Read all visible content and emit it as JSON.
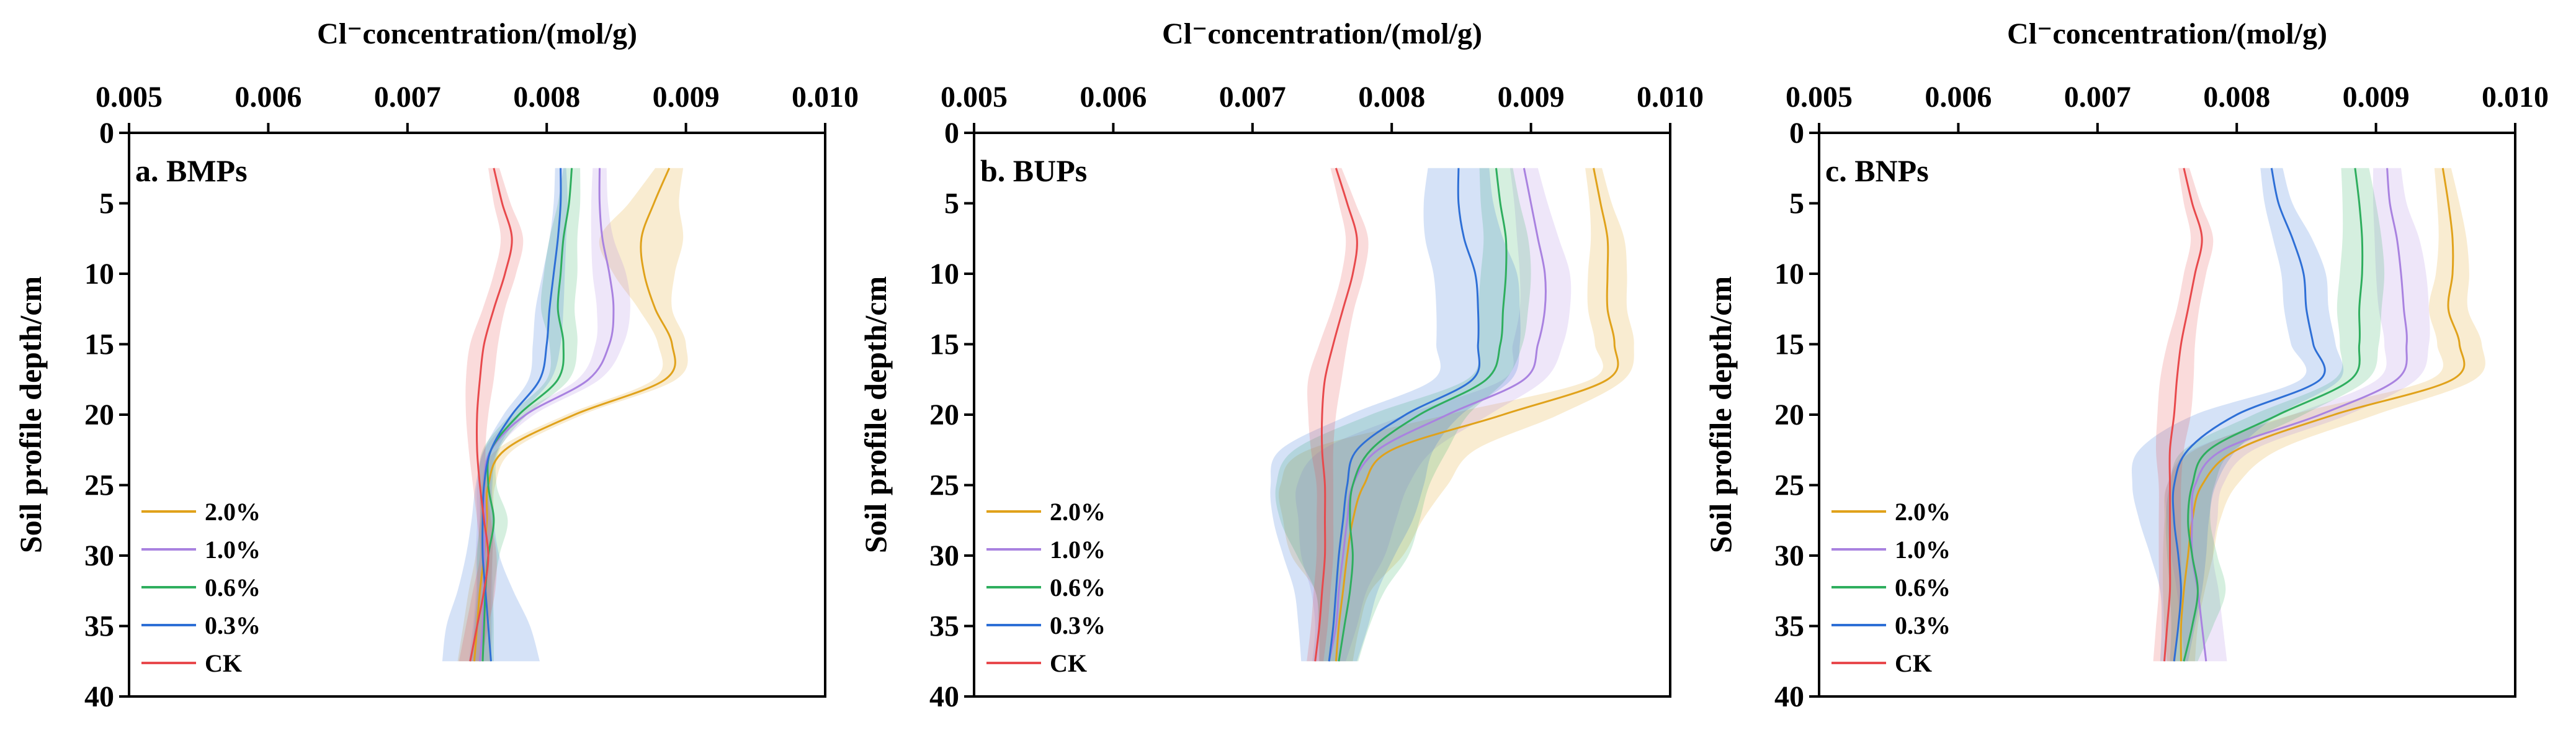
{
  "figure": {
    "panel_count": 3
  },
  "chart_data": [
    {
      "type": "line",
      "panel_label": "a. BMPs",
      "title": "Cl⁻concentration/(mol/g)",
      "xlabel": "Cl⁻concentration/(mol/g)",
      "ylabel": "Soil profile depth/cm",
      "xlim": [
        0.005,
        0.01
      ],
      "ylim": [
        0,
        40
      ],
      "xticks": [
        "0.005",
        "0.006",
        "0.007",
        "0.008",
        "0.009",
        "0.010"
      ],
      "yticks": [
        "0",
        "5",
        "10",
        "15",
        "20",
        "25",
        "30",
        "35",
        "40"
      ],
      "legend_position": "bottom-left",
      "depth": [
        2.5,
        5,
        7.5,
        10,
        12.5,
        15,
        17.5,
        20,
        22.5,
        25,
        27.5,
        30,
        32.5,
        35,
        37.5
      ],
      "series": [
        {
          "name": "2.0%",
          "color": "#E0A21B",
          "values": [
            0.00888,
            0.00877,
            0.00868,
            0.0087,
            0.00878,
            0.0089,
            0.00885,
            0.0082,
            0.0077,
            0.00758,
            0.00757,
            0.00755,
            0.00752,
            0.0075,
            0.00748
          ],
          "bandwidth": [
            0.0001,
            0.00018,
            0.0003,
            0.00022,
            0.00012,
            0.0001,
            8e-05,
            6e-05,
            6e-05,
            5e-05,
            5e-05,
            6e-05,
            8e-05,
            0.0001,
            0.00012
          ]
        },
        {
          "name": "1.0%",
          "color": "#A982E0",
          "values": [
            0.00838,
            0.00838,
            0.0084,
            0.00845,
            0.00848,
            0.00845,
            0.0083,
            0.00785,
            0.0076,
            0.00755,
            0.00756,
            0.00755,
            0.00755,
            0.00754,
            0.00752
          ],
          "bandwidth": [
            5e-05,
            6e-05,
            8e-05,
            0.00012,
            0.00012,
            0.0001,
            8e-05,
            6e-05,
            5e-05,
            5e-05,
            6e-05,
            6e-05,
            6e-05,
            7e-05,
            8e-05
          ]
        },
        {
          "name": "0.6%",
          "color": "#2EAE5E",
          "values": [
            0.00818,
            0.00816,
            0.00812,
            0.0081,
            0.00808,
            0.00812,
            0.00808,
            0.0078,
            0.0076,
            0.00758,
            0.00762,
            0.00758,
            0.00756,
            0.00755,
            0.00754
          ],
          "bandwidth": [
            6e-05,
            8e-05,
            0.0001,
            0.00012,
            0.00012,
            0.0001,
            8e-05,
            6e-05,
            6e-05,
            6e-05,
            0.0001,
            8e-05,
            6e-05,
            7e-05,
            8e-05
          ]
        },
        {
          "name": "0.3%",
          "color": "#2E6FD6",
          "values": [
            0.0081,
            0.0081,
            0.00808,
            0.00805,
            0.00802,
            0.008,
            0.00795,
            0.00775,
            0.0076,
            0.00755,
            0.00754,
            0.00754,
            0.00756,
            0.00758,
            0.0076
          ],
          "bandwidth": [
            4e-05,
            5e-05,
            6e-05,
            8e-05,
            0.0001,
            0.0001,
            8e-05,
            6e-05,
            5e-05,
            6e-05,
            8e-05,
            0.00012,
            0.0002,
            0.0003,
            0.00035
          ]
        },
        {
          "name": "CK",
          "color": "#E8494C",
          "values": [
            0.00762,
            0.00768,
            0.00775,
            0.0077,
            0.00762,
            0.00755,
            0.00752,
            0.0075,
            0.0075,
            0.00752,
            0.00755,
            0.00758,
            0.00755,
            0.0075,
            0.00745
          ],
          "bandwidth": [
            4e-05,
            6e-05,
            8e-05,
            8e-05,
            8e-05,
            0.0001,
            0.0001,
            8e-05,
            6e-05,
            5e-05,
            5e-05,
            6e-05,
            8e-05,
            8e-05,
            8e-05
          ]
        }
      ]
    },
    {
      "type": "line",
      "panel_label": "b. BUPs",
      "title": "Cl⁻concentration/(mol/g)",
      "xlabel": "Cl⁻concentration/(mol/g)",
      "ylabel": "Soil profile depth/cm",
      "xlim": [
        0.005,
        0.01
      ],
      "ylim": [
        0,
        40
      ],
      "xticks": [
        "0.005",
        "0.006",
        "0.007",
        "0.008",
        "0.009",
        "0.010"
      ],
      "yticks": [
        "0",
        "5",
        "10",
        "15",
        "20",
        "25",
        "30",
        "35",
        "40"
      ],
      "legend_position": "bottom-left",
      "depth": [
        2.5,
        5,
        7.5,
        10,
        12.5,
        15,
        17.5,
        20,
        22.5,
        25,
        27.5,
        30,
        32.5,
        35,
        37.5
      ],
      "series": [
        {
          "name": "2.0%",
          "color": "#E0A21B",
          "values": [
            0.00945,
            0.0095,
            0.00955,
            0.00955,
            0.00955,
            0.0096,
            0.00955,
            0.0088,
            0.008,
            0.0078,
            0.00772,
            0.00768,
            0.00765,
            0.00762,
            0.0076
          ],
          "bandwidth": [
            6e-05,
            8e-05,
            0.00012,
            0.00014,
            0.00014,
            0.00014,
            0.00012,
            0.0004,
            0.0006,
            0.0006,
            0.0005,
            0.0004,
            0.0002,
            0.00015,
            0.00012
          ]
        },
        {
          "name": "1.0%",
          "color": "#A982E0",
          "values": [
            0.00895,
            0.009,
            0.00905,
            0.0091,
            0.0091,
            0.00905,
            0.00895,
            0.0084,
            0.0079,
            0.00772,
            0.00768,
            0.00765,
            0.00762,
            0.0076,
            0.00755
          ],
          "bandwidth": [
            0.0001,
            0.00012,
            0.00015,
            0.00018,
            0.00018,
            0.00018,
            0.00015,
            0.0003,
            0.0004,
            0.0004,
            0.00035,
            0.0003,
            0.0002,
            0.00015,
            0.00012
          ]
        },
        {
          "name": "0.6%",
          "color": "#2EAE5E",
          "values": [
            0.00875,
            0.00878,
            0.00882,
            0.00882,
            0.0088,
            0.00878,
            0.00868,
            0.0082,
            0.00785,
            0.00772,
            0.0077,
            0.00772,
            0.0077,
            0.00766,
            0.00762
          ],
          "bandwidth": [
            0.00012,
            0.00014,
            0.00016,
            0.00018,
            0.00018,
            0.00016,
            0.00014,
            0.00035,
            0.00055,
            0.00055,
            0.0005,
            0.0004,
            0.00025,
            0.00018,
            0.00014
          ]
        },
        {
          "name": "0.3%",
          "color": "#2E6FD6",
          "values": [
            0.00848,
            0.00848,
            0.00852,
            0.0086,
            0.00862,
            0.00862,
            0.00858,
            0.0081,
            0.00775,
            0.00768,
            0.00765,
            0.00762,
            0.0076,
            0.00758,
            0.00755
          ],
          "bandwidth": [
            0.00022,
            0.00025,
            0.00028,
            0.0003,
            0.0003,
            0.0003,
            0.00028,
            0.0004,
            0.00055,
            0.00055,
            0.0005,
            0.0004,
            0.0003,
            0.00025,
            0.0002
          ]
        },
        {
          "name": "CK",
          "color": "#E8494C",
          "values": [
            0.0076,
            0.00768,
            0.00775,
            0.00772,
            0.00765,
            0.00758,
            0.00752,
            0.0075,
            0.0075,
            0.00752,
            0.00752,
            0.00752,
            0.0075,
            0.00748,
            0.00745
          ],
          "bandwidth": [
            4e-05,
            6e-05,
            8e-05,
            8e-05,
            8e-05,
            0.0001,
            0.00012,
            0.0001,
            8e-05,
            6e-05,
            6e-05,
            6e-05,
            6e-05,
            6e-05,
            6e-05
          ]
        }
      ]
    },
    {
      "type": "line",
      "panel_label": "c. BNPs",
      "title": "Cl⁻concentration/(mol/g)",
      "xlabel": "Cl⁻concentration/(mol/g)",
      "ylabel": "Soil profile depth/cm",
      "xlim": [
        0.005,
        0.01
      ],
      "ylim": [
        0,
        40
      ],
      "xticks": [
        "0.005",
        "0.006",
        "0.007",
        "0.008",
        "0.009",
        "0.010"
      ],
      "yticks": [
        "0",
        "5",
        "10",
        "15",
        "20",
        "25",
        "30",
        "35",
        "40"
      ],
      "legend_position": "bottom-left",
      "depth": [
        2.5,
        5,
        7.5,
        10,
        12.5,
        15,
        17.5,
        20,
        22.5,
        25,
        27.5,
        30,
        32.5,
        35,
        37.5
      ],
      "series": [
        {
          "name": "2.0%",
          "color": "#E0A21B",
          "values": [
            0.00948,
            0.00952,
            0.00955,
            0.00955,
            0.00952,
            0.0096,
            0.00955,
            0.0087,
            0.008,
            0.00775,
            0.00768,
            0.00765,
            0.00762,
            0.0076,
            0.0076
          ],
          "bandwidth": [
            6e-05,
            8e-05,
            0.0001,
            0.00012,
            0.00014,
            0.00016,
            0.00016,
            0.0003,
            0.0003,
            0.00025,
            0.0002,
            0.00018,
            0.00015,
            0.00012,
            0.0001
          ]
        },
        {
          "name": "1.0%",
          "color": "#A982E0",
          "values": [
            0.00908,
            0.0091,
            0.00915,
            0.00918,
            0.0092,
            0.00922,
            0.00915,
            0.0086,
            0.0079,
            0.0077,
            0.00768,
            0.00768,
            0.00772,
            0.00775,
            0.00778
          ],
          "bandwidth": [
            0.0001,
            0.00012,
            0.00016,
            0.00018,
            0.00018,
            0.00016,
            0.00014,
            0.0002,
            0.00022,
            0.0002,
            0.00018,
            0.00015,
            0.00015,
            0.00015,
            0.00015
          ]
        },
        {
          "name": "0.6%",
          "color": "#2EAE5E",
          "values": [
            0.00885,
            0.00888,
            0.0089,
            0.0089,
            0.00888,
            0.00888,
            0.00882,
            0.0083,
            0.0078,
            0.00768,
            0.00765,
            0.00768,
            0.00772,
            0.00768,
            0.00762
          ],
          "bandwidth": [
            0.0001,
            0.00012,
            0.00014,
            0.00016,
            0.00016,
            0.00014,
            0.00012,
            0.00018,
            0.00018,
            0.00016,
            0.00016,
            0.00018,
            0.0002,
            0.00015,
            0.0001
          ]
        },
        {
          "name": "0.3%",
          "color": "#2E6FD6",
          "values": [
            0.00825,
            0.0083,
            0.0084,
            0.00848,
            0.0085,
            0.00855,
            0.0086,
            0.008,
            0.00765,
            0.00755,
            0.00755,
            0.00758,
            0.0076,
            0.00758,
            0.00755
          ],
          "bandwidth": [
            8e-05,
            0.0001,
            0.00014,
            0.00016,
            0.00016,
            0.00016,
            0.00014,
            0.0003,
            0.00035,
            0.0003,
            0.00025,
            0.0002,
            0.00015,
            0.00012,
            0.0001
          ]
        },
        {
          "name": "CK",
          "color": "#E8494C",
          "values": [
            0.00762,
            0.00768,
            0.00775,
            0.0077,
            0.00765,
            0.0076,
            0.00757,
            0.00755,
            0.00752,
            0.00752,
            0.00752,
            0.00752,
            0.00752,
            0.0075,
            0.00748
          ],
          "bandwidth": [
            4e-05,
            6e-05,
            8e-05,
            8e-05,
            8e-05,
            0.0001,
            0.00012,
            0.00012,
            0.0001,
            8e-05,
            8e-05,
            8e-05,
            8e-05,
            8e-05,
            8e-05
          ]
        }
      ]
    }
  ]
}
